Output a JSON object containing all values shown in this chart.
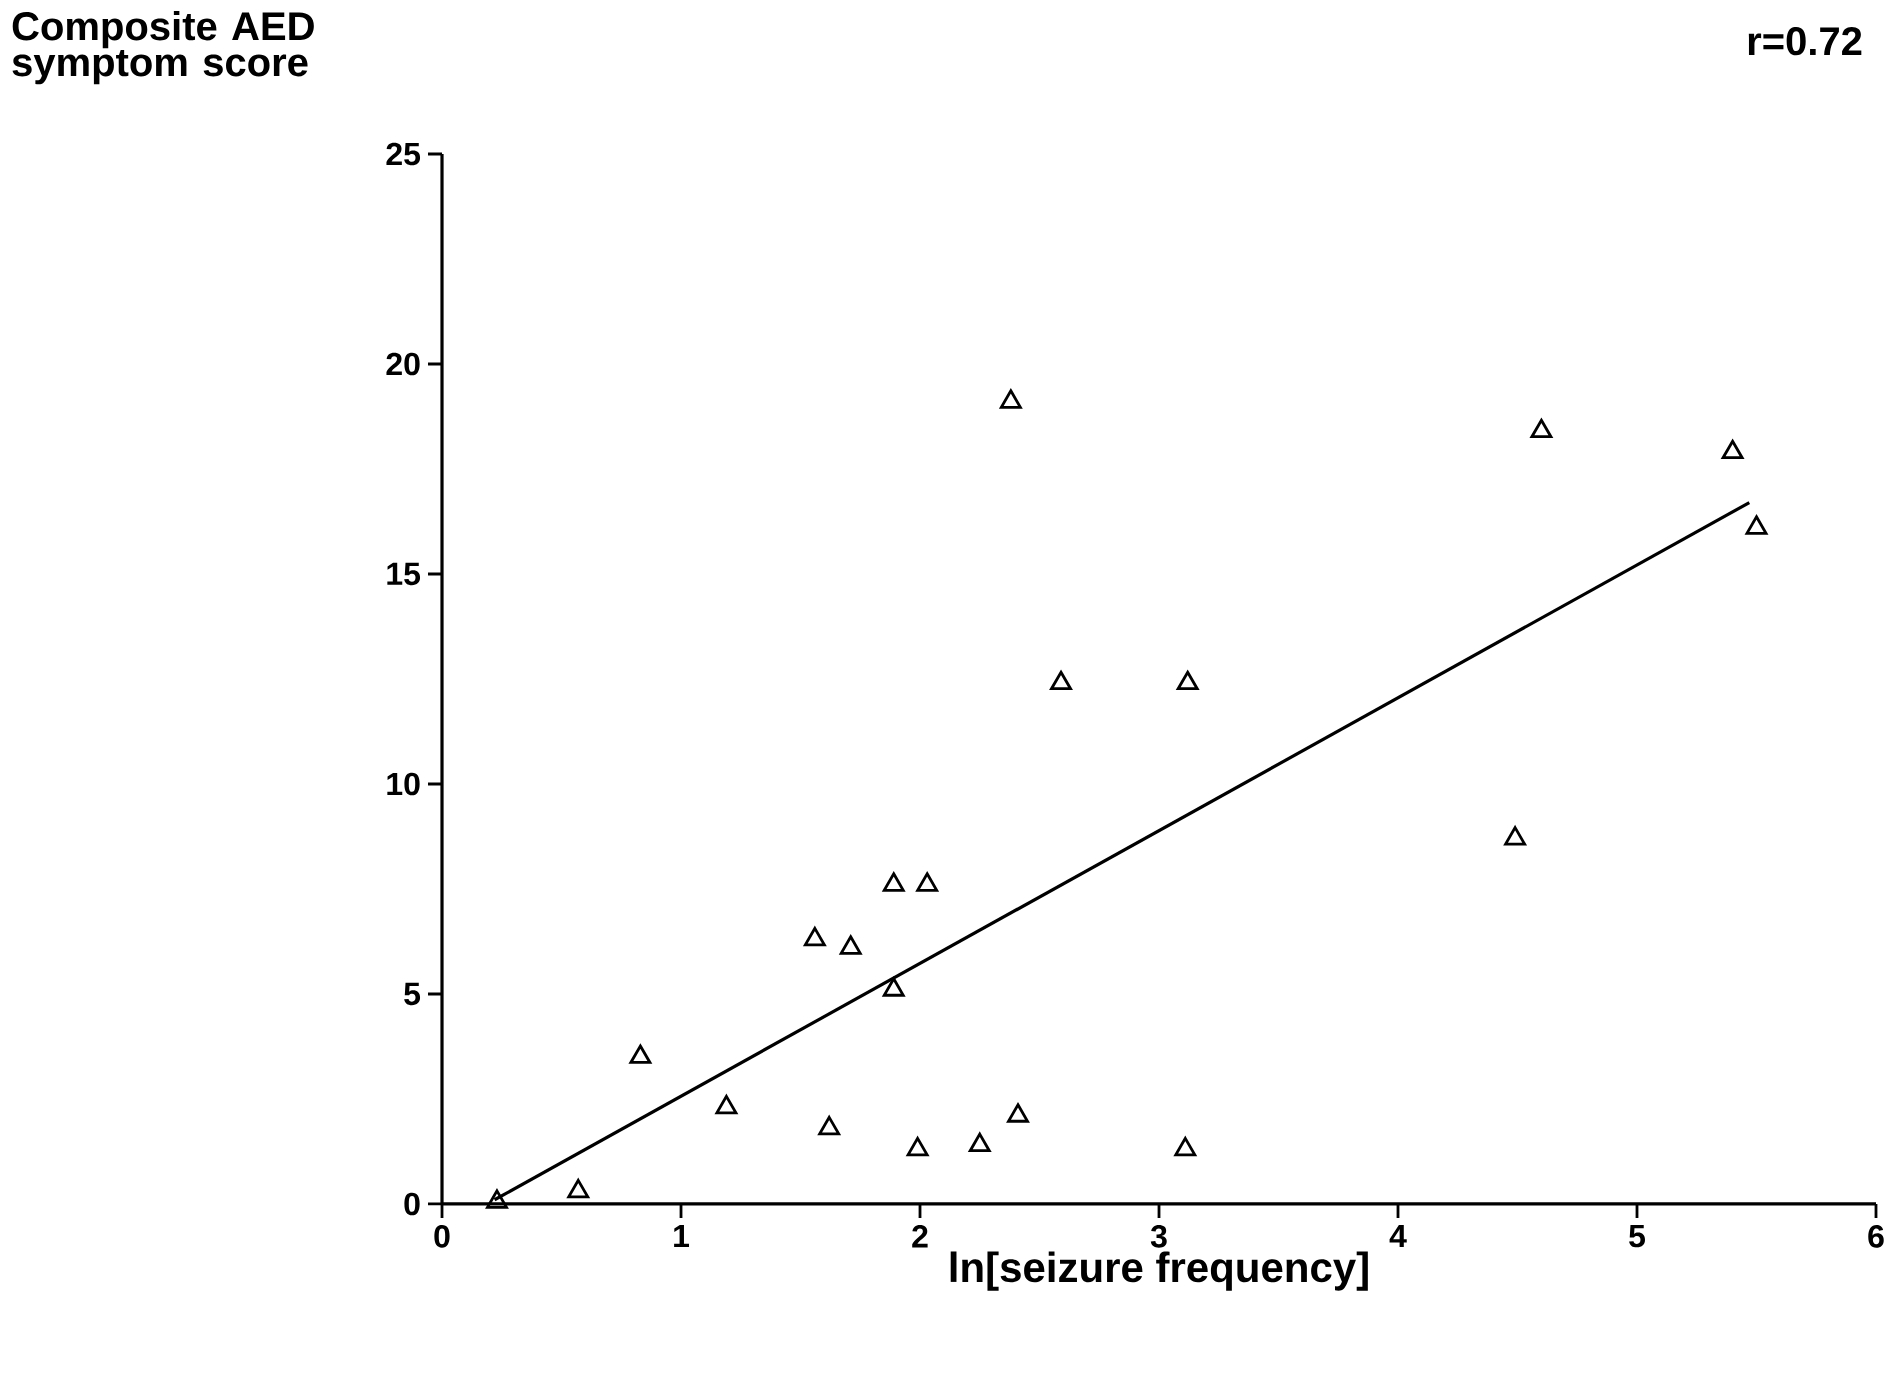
{
  "chart_data": {
    "type": "scatter",
    "xlabel": "ln[seizure frequency]",
    "ylabel": "Composite AED symptom score",
    "annotations": [
      "r=0.72"
    ],
    "xlim": [
      0,
      6
    ],
    "ylim": [
      0,
      25
    ],
    "xticks": [
      0,
      1,
      2,
      3,
      4,
      5,
      6
    ],
    "yticks": [
      0,
      5,
      10,
      15,
      20,
      25
    ],
    "series": [
      {
        "marker": "triangle",
        "color": "#000000",
        "x": [
          0.23,
          0.57,
          0.83,
          1.19,
          1.56,
          1.62,
          1.71,
          1.89,
          1.89,
          1.99,
          2.03,
          2.25,
          2.38,
          2.41,
          2.59,
          3.11,
          3.12,
          4.49,
          4.6,
          5.4,
          5.5
        ],
        "values": [
          0.05,
          0.3,
          3.5,
          2.3,
          6.3,
          1.8,
          6.1,
          7.6,
          5.1,
          1.3,
          7.6,
          1.4,
          19.1,
          2.1,
          12.4,
          1.3,
          12.4,
          8.7,
          18.4,
          17.9,
          16.1
        ]
      },
      {
        "type": "line",
        "line_style": "solid",
        "marker": "none",
        "color": "#000000",
        "x": [
          0.22,
          5.47
        ],
        "values": [
          0.1,
          16.7
        ]
      }
    ]
  }
}
